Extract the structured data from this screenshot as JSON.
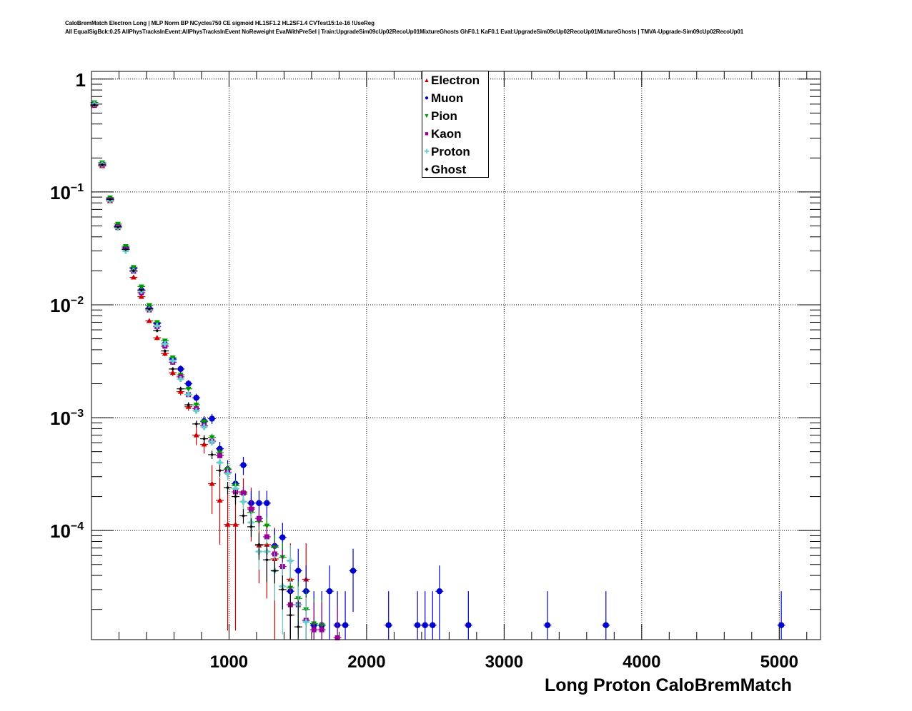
{
  "chart_data": {
    "type": "scatter",
    "title_lines": [
      "CaloBremMatch Electron Long | MLP Norm BP NCycles750 CE sigmoid HL1SF1.2 HL2SF1.4 CVTest15:1e-16 !UseReg",
      "All EqualSigBck:0.25 AllPhysTracksInEvent:AllPhysTracksInEvent NoReweight EvalWithPreSel | Train:UpgradeSim09cUp02RecoUp01MixtureGhosts GhF0.1 KaF0.1 Eval:UpgradeSim09cUp02RecoUp01MixtureGhosts | TMVA-Upgrade-Sim09cUp02RecoUp01"
    ],
    "xlabel": "Long Proton CaloBremMatch",
    "ylabel": "",
    "xlim": [
      0,
      5300
    ],
    "ylim": [
      1.08e-05,
      1.17
    ],
    "yscale": "log",
    "grid": true,
    "legend_position": "top-center",
    "x_ticks": [
      {
        "value": 1000,
        "label": "1000"
      },
      {
        "value": 2000,
        "label": "2000"
      },
      {
        "value": 3000,
        "label": "3000"
      },
      {
        "value": 4000,
        "label": "4000"
      },
      {
        "value": 5000,
        "label": "5000"
      }
    ],
    "y_ticks": [
      {
        "value": 1,
        "base": "1",
        "exp": ""
      },
      {
        "value": 0.1,
        "base": "10",
        "exp": "−1"
      },
      {
        "value": 0.01,
        "base": "10",
        "exp": "−2"
      },
      {
        "value": 0.001,
        "base": "10",
        "exp": "−3"
      },
      {
        "value": 0.0001,
        "base": "10",
        "exp": "−4"
      }
    ],
    "series": [
      {
        "name": "Electron",
        "color": "#cc0000",
        "marker": "triangle-up",
        "points": [
          [
            21,
            0.58
          ],
          [
            78,
            0.17
          ],
          [
            135,
            0.083
          ],
          [
            192,
            0.048
          ],
          [
            249,
            0.031
          ],
          [
            306,
            0.0175
          ],
          [
            363,
            0.0118
          ],
          [
            420,
            0.0072
          ],
          [
            477,
            0.0051
          ],
          [
            534,
            0.0037
          ],
          [
            591,
            0.0025
          ],
          [
            648,
            0.0017
          ],
          [
            705,
            0.00125
          ],
          [
            762,
            0.0007
          ],
          [
            819,
            0.00058
          ],
          [
            876,
            0.00026
          ],
          [
            933,
            0.000185
          ],
          [
            990,
            0.000113
          ],
          [
            1047,
            0.000113
          ],
          [
            1104,
            0.00022
          ],
          [
            1161,
            0.00016
          ],
          [
            1218,
            7.4e-05
          ],
          [
            1275,
            7.5e-05
          ],
          [
            1332,
            5.6e-05
          ],
          [
            1446,
            3.7e-05
          ],
          [
            1560,
            3.7e-05
          ]
        ],
        "errors": [
          0.004,
          0.002,
          0.0015,
          0.001,
          0.0008,
          0.0005,
          0.0004,
          0.0003,
          0.00025,
          0.0002,
          0.00017,
          0.00013,
          0.0001,
          0.00013,
          0.0001,
          0.00012,
          0.00011,
          0.0001,
          0.0001,
          7e-05,
          8e-05,
          4e-05,
          5e-05,
          5e-05,
          4e-05,
          4e-05
        ]
      },
      {
        "name": "Muon",
        "color": "#0000cc",
        "marker": "circle",
        "points": [
          [
            21,
            0.6
          ],
          [
            78,
            0.177
          ],
          [
            135,
            0.087
          ],
          [
            192,
            0.05
          ],
          [
            249,
            0.032
          ],
          [
            306,
            0.021
          ],
          [
            363,
            0.0135
          ],
          [
            420,
            0.0093
          ],
          [
            477,
            0.0068
          ],
          [
            534,
            0.0045
          ],
          [
            591,
            0.0033
          ],
          [
            648,
            0.0027
          ],
          [
            705,
            0.002
          ],
          [
            762,
            0.0015
          ],
          [
            819,
            0.00093
          ],
          [
            876,
            0.00098
          ],
          [
            933,
            0.00053
          ],
          [
            990,
            0.00035
          ],
          [
            1047,
            0.00026
          ],
          [
            1104,
            0.00038
          ],
          [
            1161,
            0.000175
          ],
          [
            1218,
            0.000175
          ],
          [
            1275,
            0.000175
          ],
          [
            1332,
            7.3e-05
          ],
          [
            1389,
            8.7e-05
          ],
          [
            1446,
            2.9e-05
          ],
          [
            1503,
            4.4e-05
          ],
          [
            1560,
            2.9e-05
          ],
          [
            1617,
            1.45e-05
          ],
          [
            1674,
            1.45e-05
          ],
          [
            1731,
            2.9e-05
          ],
          [
            1788,
            1.45e-05
          ],
          [
            1845,
            1.45e-05
          ],
          [
            1902,
            4.4e-05
          ],
          [
            2160,
            1.45e-05
          ],
          [
            2370,
            1.45e-05
          ],
          [
            2425,
            1.45e-05
          ],
          [
            2480,
            1.45e-05
          ],
          [
            2530,
            2.9e-05
          ],
          [
            2740,
            1.45e-05
          ],
          [
            3315,
            1.45e-05
          ],
          [
            3740,
            1.45e-05
          ],
          [
            5015,
            1.45e-05
          ]
        ],
        "errors": [
          0.004,
          0.002,
          0.0015,
          0.001,
          0.0008,
          0.0006,
          0.0005,
          0.0004,
          0.0003,
          0.00025,
          0.0002,
          0.0002,
          0.00015,
          0.00013,
          0.0001,
          0.0001,
          8e-05,
          7e-05,
          6e-05,
          7e-05,
          5e-05,
          5e-05,
          5e-05,
          3e-05,
          3e-05,
          2e-05,
          2.5e-05,
          2e-05,
          1.45e-05,
          1.45e-05,
          2e-05,
          1.45e-05,
          1.45e-05,
          2.5e-05,
          1.45e-05,
          1.45e-05,
          1.45e-05,
          1.45e-05,
          2e-05,
          1.45e-05,
          1.45e-05,
          1.45e-05,
          1.45e-05
        ]
      },
      {
        "name": "Pion",
        "color": "#009900",
        "marker": "triangle-down",
        "points": [
          [
            21,
            0.62
          ],
          [
            78,
            0.182
          ],
          [
            135,
            0.089
          ],
          [
            192,
            0.052
          ],
          [
            249,
            0.033
          ],
          [
            306,
            0.0215
          ],
          [
            363,
            0.0145
          ],
          [
            420,
            0.0099
          ],
          [
            477,
            0.007
          ],
          [
            534,
            0.0048
          ],
          [
            591,
            0.0034
          ],
          [
            648,
            0.0024
          ],
          [
            705,
            0.0018
          ],
          [
            762,
            0.0013
          ],
          [
            819,
            0.00092
          ],
          [
            876,
            0.00067
          ],
          [
            933,
            0.00049
          ],
          [
            990,
            0.00035
          ],
          [
            1047,
            0.00025
          ],
          [
            1104,
            0.00021
          ],
          [
            1161,
            0.000145
          ],
          [
            1218,
            0.00012
          ],
          [
            1275,
            0.00011
          ],
          [
            1332,
            7.1e-05
          ],
          [
            1389,
            5.8e-05
          ],
          [
            1446,
            3.1e-05
          ],
          [
            1503,
            2.5e-05
          ],
          [
            1560,
            2e-05
          ],
          [
            1617,
            1.5e-05
          ],
          [
            1674,
            1.45e-05
          ]
        ],
        "errors": [
          0.002,
          0.001,
          0.0007,
          0.0005,
          0.0004,
          0.0003,
          0.00025,
          0.0002,
          0.00016,
          0.00013,
          0.00011,
          0.0001,
          8e-05,
          7e-05,
          6e-05,
          5e-05,
          4e-05,
          4e-05,
          3e-05,
          3e-05,
          3e-05,
          2e-05,
          2e-05,
          2e-05,
          2e-05,
          1e-05,
          1e-05,
          1e-05,
          1e-05,
          1e-05
        ]
      },
      {
        "name": "Kaon",
        "color": "#990099",
        "marker": "square",
        "points": [
          [
            21,
            0.59
          ],
          [
            78,
            0.173
          ],
          [
            135,
            0.085
          ],
          [
            192,
            0.049
          ],
          [
            249,
            0.031
          ],
          [
            306,
            0.0198
          ],
          [
            363,
            0.0128
          ],
          [
            420,
            0.009
          ],
          [
            477,
            0.0064
          ],
          [
            534,
            0.0043
          ],
          [
            591,
            0.0031
          ],
          [
            648,
            0.0023
          ],
          [
            705,
            0.0016
          ],
          [
            762,
            0.0012
          ],
          [
            819,
            0.00085
          ],
          [
            876,
            0.00062
          ],
          [
            933,
            0.00046
          ],
          [
            990,
            0.00033
          ],
          [
            1047,
            0.00022
          ],
          [
            1104,
            0.000215
          ],
          [
            1161,
            0.000155
          ],
          [
            1218,
            0.000128
          ],
          [
            1275,
            8.8e-05
          ],
          [
            1332,
            6.2e-05
          ],
          [
            1389,
            4.8e-05
          ],
          [
            1446,
            2.2e-05
          ],
          [
            1503,
            2.2e-05
          ],
          [
            1560,
            1.6e-05
          ],
          [
            1617,
            1.32e-05
          ],
          [
            1674,
            1.32e-05
          ],
          [
            1788,
            1.12e-05
          ]
        ],
        "errors": [
          0.002,
          0.001,
          0.0007,
          0.0005,
          0.0004,
          0.0003,
          0.00025,
          0.0002,
          0.00016,
          0.00013,
          0.00011,
          0.0001,
          8e-05,
          7e-05,
          6e-05,
          5e-05,
          4e-05,
          4e-05,
          3e-05,
          3e-05,
          3e-05,
          2e-05,
          2e-05,
          2e-05,
          2e-05,
          1e-05,
          1e-05,
          1e-05,
          1e-05,
          1e-05,
          1e-05
        ]
      },
      {
        "name": "Proton",
        "color": "#66cccc",
        "marker": "cross",
        "points": [
          [
            21,
            0.6
          ],
          [
            78,
            0.175
          ],
          [
            135,
            0.084
          ],
          [
            192,
            0.048
          ],
          [
            249,
            0.03
          ],
          [
            306,
            0.02
          ],
          [
            363,
            0.0132
          ],
          [
            420,
            0.0091
          ],
          [
            477,
            0.0065
          ],
          [
            534,
            0.0045
          ],
          [
            591,
            0.0032
          ],
          [
            648,
            0.0022
          ],
          [
            705,
            0.0016
          ],
          [
            762,
            0.00115
          ],
          [
            819,
            0.00083
          ],
          [
            876,
            0.00061
          ],
          [
            933,
            0.0004
          ],
          [
            990,
            0.00032
          ],
          [
            1047,
            0.000235
          ],
          [
            1104,
            0.00018
          ],
          [
            1161,
            0.000118
          ],
          [
            1218,
            6.5e-05
          ],
          [
            1275,
            6.5e-05
          ],
          [
            1332,
            4.4e-05
          ],
          [
            1389,
            3.2e-05
          ],
          [
            1446,
            5.4e-05
          ],
          [
            1503,
            2.2e-05
          ],
          [
            1560,
            1.55e-05
          ]
        ],
        "errors": [
          0.002,
          0.001,
          0.0007,
          0.0005,
          0.0004,
          0.0003,
          0.00025,
          0.0002,
          0.00016,
          0.00013,
          0.00011,
          0.0001,
          8e-05,
          7e-05,
          6e-05,
          5e-05,
          4e-05,
          4e-05,
          3e-05,
          3e-05,
          3e-05,
          2e-05,
          2e-05,
          2e-05,
          2e-05,
          2e-05,
          1e-05,
          1e-05
        ]
      },
      {
        "name": "Ghost",
        "color": "#000000",
        "marker": "diamond",
        "points": [
          [
            21,
            0.59
          ],
          [
            78,
            0.174
          ],
          [
            135,
            0.086
          ],
          [
            192,
            0.049
          ],
          [
            249,
            0.031
          ],
          [
            306,
            0.02
          ],
          [
            363,
            0.0135
          ],
          [
            420,
            0.0092
          ],
          [
            477,
            0.0059
          ],
          [
            534,
            0.0039
          ],
          [
            591,
            0.0027
          ],
          [
            648,
            0.0018
          ],
          [
            705,
            0.0013
          ],
          [
            762,
            0.00088
          ],
          [
            819,
            0.00065
          ],
          [
            876,
            0.00047
          ],
          [
            933,
            0.00034
          ],
          [
            990,
            0.00024
          ],
          [
            1047,
            0.0002
          ],
          [
            1104,
            0.000135
          ],
          [
            1161,
            0.000108
          ],
          [
            1218,
            7.5e-05
          ],
          [
            1275,
            5.5e-05
          ],
          [
            1332,
            4.4e-05
          ],
          [
            1389,
            3e-05
          ],
          [
            1446,
            1.78e-05
          ],
          [
            1503,
            1.4e-05
          ]
        ],
        "errors": [
          0.002,
          0.001,
          0.0007,
          0.0005,
          0.0004,
          0.0003,
          0.00025,
          0.0002,
          0.00015,
          0.00012,
          0.0001,
          8e-05,
          7e-05,
          6e-05,
          5e-05,
          4e-05,
          4e-05,
          3e-05,
          3e-05,
          2e-05,
          2e-05,
          2e-05,
          2e-05,
          1e-05,
          1e-05,
          1e-05,
          1e-05
        ]
      }
    ]
  }
}
